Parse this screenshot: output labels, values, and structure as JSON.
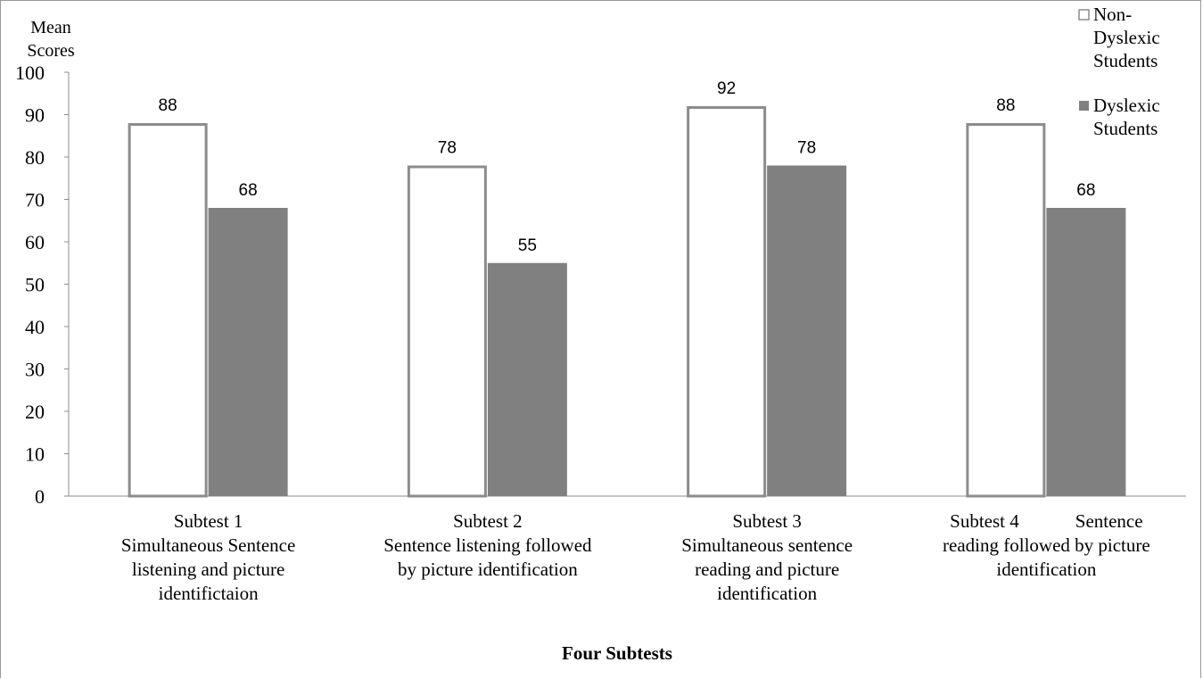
{
  "chart_data": {
    "type": "bar",
    "ylabel": [
      "Mean",
      "Scores"
    ],
    "xlabel": "Four Subtests",
    "ylim": [
      0,
      100
    ],
    "yticks": [
      0,
      10,
      20,
      30,
      40,
      50,
      60,
      70,
      80,
      90,
      100
    ],
    "categories": [
      [
        "Subtest 1",
        "Simultaneous Sentence",
        "listening and picture",
        "identifictaion"
      ],
      [
        "Subtest 2",
        "Sentence listening followed",
        "by picture identification"
      ],
      [
        "Subtest 3",
        "Simultaneous sentence",
        "reading and picture",
        "identification"
      ],
      [
        "Subtest 4            Sentence",
        "reading followed by picture",
        "identification"
      ]
    ],
    "series": [
      {
        "name": [
          "Non-",
          "Dyslexic",
          "Students"
        ],
        "values": [
          88,
          78,
          92,
          88
        ],
        "fill": "#ffffff",
        "stroke": "#8c8c8c"
      },
      {
        "name": [
          "Dyslexic",
          "Students"
        ],
        "values": [
          68,
          55,
          78,
          68
        ],
        "fill": "#808080",
        "stroke": "#808080"
      }
    ],
    "legend_position": "top-right",
    "grid": false
  }
}
